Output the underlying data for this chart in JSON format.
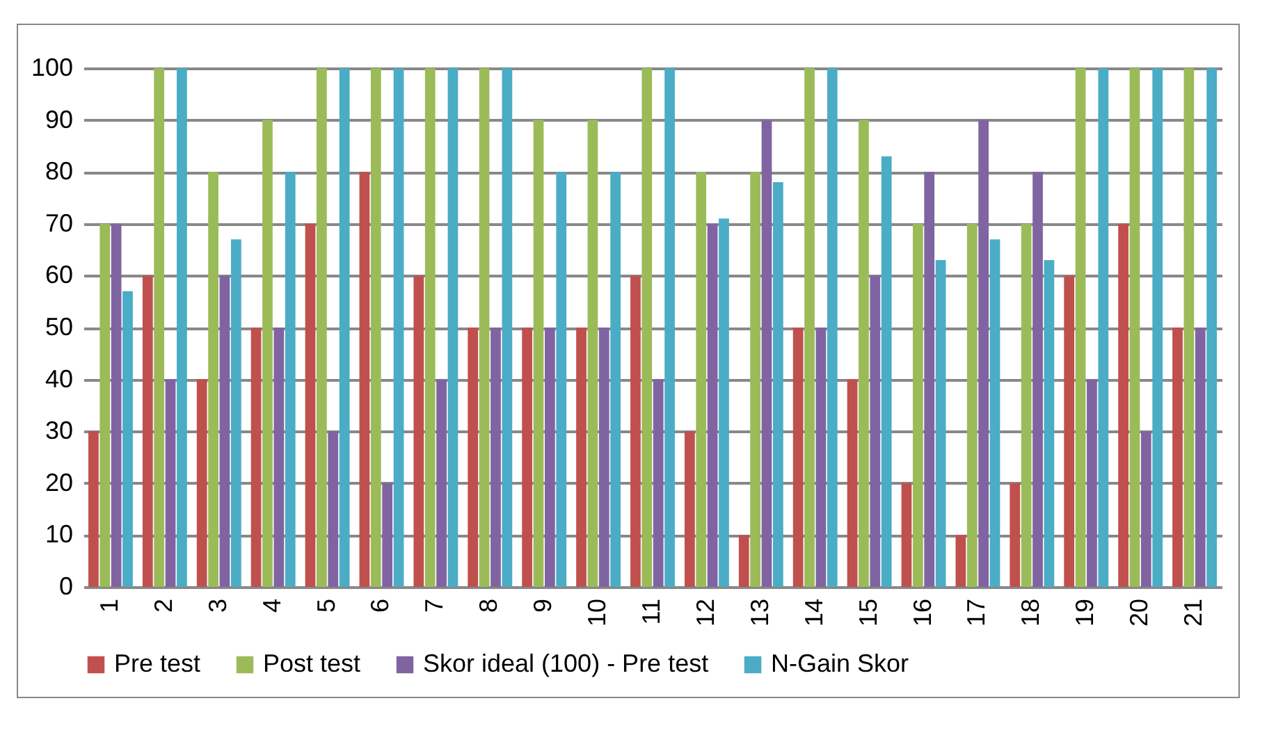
{
  "chart_data": {
    "type": "bar",
    "categories": [
      "1",
      "2",
      "3",
      "4",
      "5",
      "6",
      "7",
      "8",
      "9",
      "10",
      "11",
      "12",
      "13",
      "14",
      "15",
      "16",
      "17",
      "18",
      "19",
      "20",
      "21"
    ],
    "series": [
      {
        "name": "Pre test",
        "color": "#c0504d",
        "values": [
          30,
          60,
          40,
          50,
          70,
          80,
          60,
          50,
          50,
          50,
          60,
          30,
          10,
          50,
          40,
          20,
          10,
          20,
          60,
          70,
          50
        ]
      },
      {
        "name": "Post test",
        "color": "#9bbb59",
        "values": [
          70,
          100,
          80,
          90,
          100,
          100,
          100,
          100,
          90,
          90,
          100,
          80,
          80,
          100,
          90,
          70,
          70,
          70,
          100,
          100,
          100
        ]
      },
      {
        "name": "Skor ideal (100) - Pre test",
        "color": "#8064a2",
        "values": [
          70,
          40,
          60,
          50,
          30,
          20,
          40,
          50,
          50,
          50,
          40,
          70,
          90,
          50,
          60,
          80,
          90,
          80,
          40,
          30,
          50
        ]
      },
      {
        "name": "N-Gain Skor",
        "color": "#4bacc6",
        "values": [
          57,
          100,
          67,
          80,
          100,
          100,
          100,
          100,
          80,
          80,
          100,
          71,
          78,
          100,
          83,
          63,
          67,
          63,
          100,
          100,
          100
        ]
      }
    ],
    "ylim": [
      0,
      100
    ],
    "yticks": [
      0,
      10,
      20,
      30,
      40,
      50,
      60,
      70,
      80,
      90,
      100
    ],
    "grid": "y",
    "legend": "bottom"
  }
}
